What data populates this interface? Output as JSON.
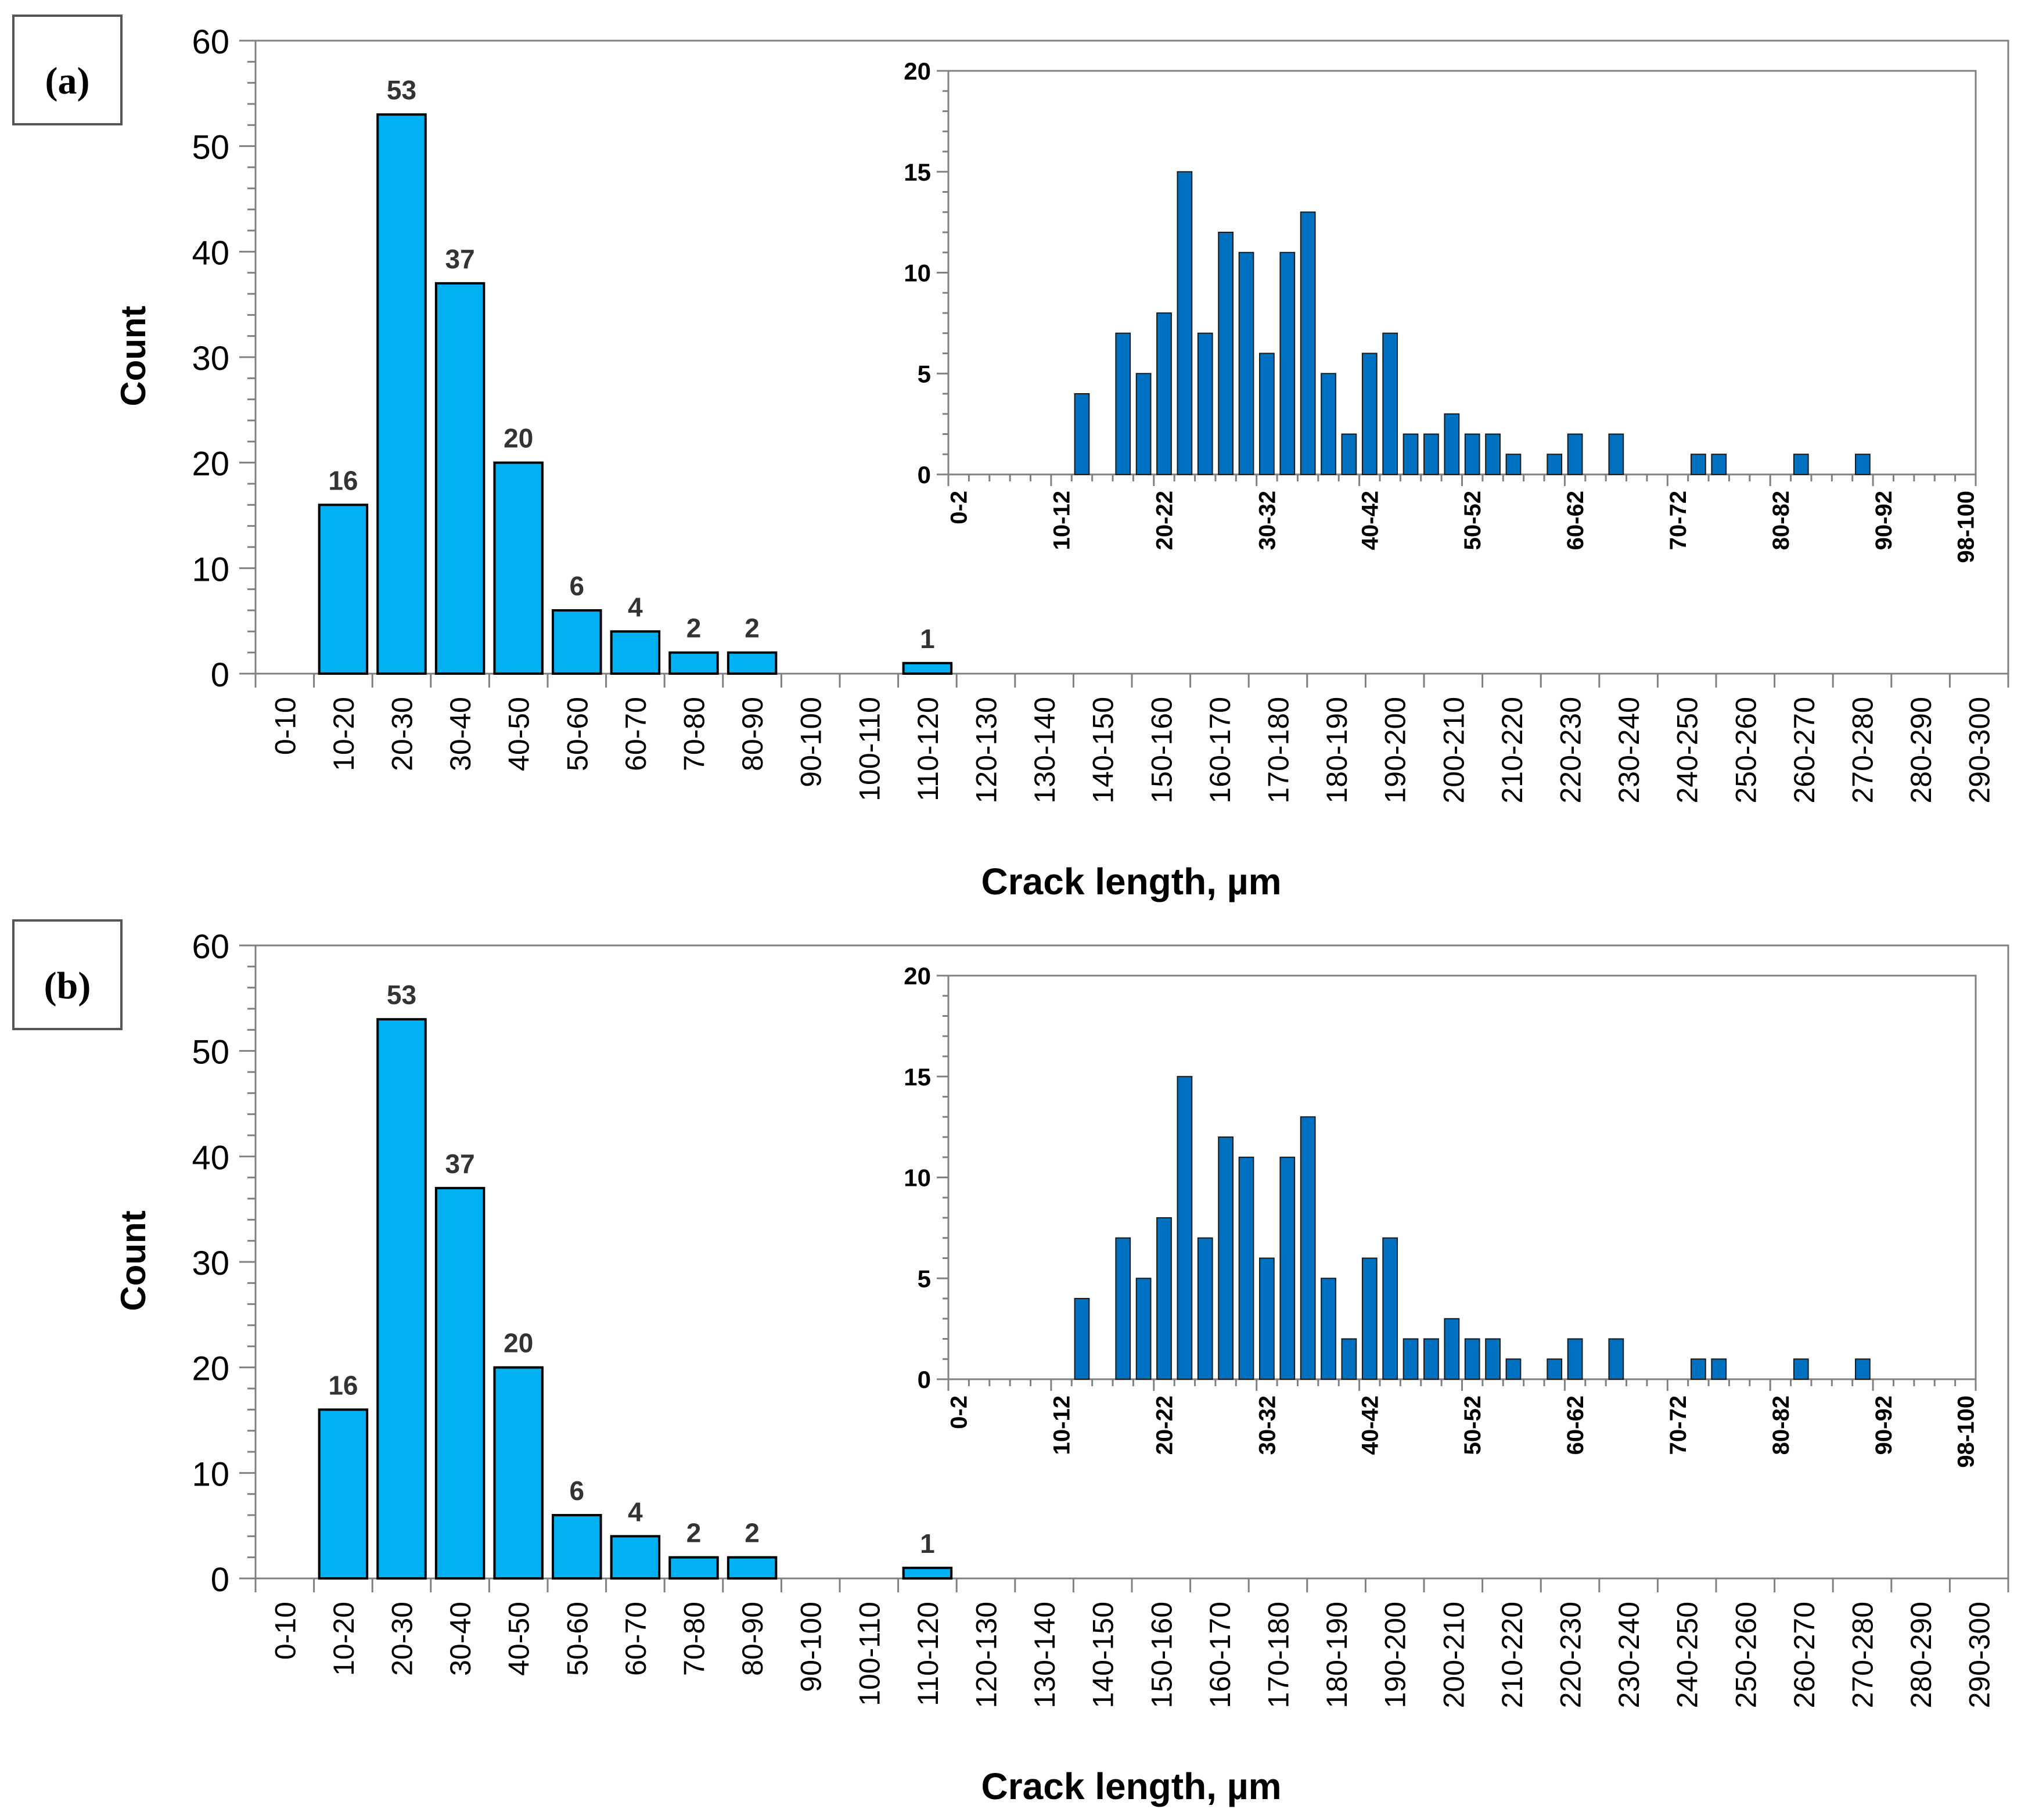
{
  "colors": {
    "main_bar": "#00b0f0",
    "inset_bar": "#0070c0",
    "bar_edge": "#000000",
    "axis": "#808080"
  },
  "chart_data": [
    {
      "panel_label": "(a)",
      "type": "bar",
      "ylabel": "Count",
      "xlabel": "Crack length, µm",
      "ylim": [
        0,
        60
      ],
      "yticks": [
        "0",
        "10",
        "20",
        "30",
        "40",
        "50",
        "60"
      ],
      "categories": [
        "0-10",
        "10-20",
        "20-30",
        "30-40",
        "40-50",
        "50-60",
        "60-70",
        "70-80",
        "80-90",
        "90-100",
        "100-110",
        "110-120",
        "120-130",
        "130-140",
        "140-150",
        "150-160",
        "160-170",
        "170-180",
        "180-190",
        "190-200",
        "200-210",
        "210-220",
        "220-230",
        "230-240",
        "240-250",
        "250-260",
        "260-270",
        "270-280",
        "280-290",
        "290-300"
      ],
      "values": [
        0,
        16,
        53,
        37,
        20,
        6,
        4,
        2,
        2,
        0,
        0,
        1,
        0,
        0,
        0,
        0,
        0,
        0,
        0,
        0,
        0,
        0,
        0,
        0,
        0,
        0,
        0,
        0,
        0,
        0
      ],
      "data_labels": [
        "",
        "16",
        "53",
        "37",
        "20",
        "6",
        "4",
        "2",
        "2",
        "",
        "",
        "1",
        "",
        "",
        "",
        "",
        "",
        "",
        "",
        "",
        "",
        "",
        "",
        "",
        "",
        "",
        "",
        "",
        "",
        ""
      ],
      "inset": {
        "type": "bar",
        "ylim": [
          0,
          20
        ],
        "yticks": [
          "0",
          "5",
          "10",
          "15",
          "20"
        ],
        "tick_labels": [
          "0-2",
          "10-12",
          "20-22",
          "30-32",
          "40-42",
          "50-52",
          "60-62",
          "70-72",
          "80-82",
          "90-92",
          "98-100"
        ],
        "values": [
          0,
          0,
          0,
          0,
          0,
          0,
          4,
          0,
          7,
          5,
          8,
          15,
          7,
          12,
          11,
          6,
          11,
          13,
          5,
          2,
          6,
          7,
          2,
          2,
          3,
          2,
          2,
          1,
          0,
          1,
          2,
          0,
          2,
          0,
          0,
          0,
          1,
          1,
          0,
          0,
          0,
          1,
          0,
          0,
          1,
          0,
          0,
          0,
          0,
          0
        ]
      }
    },
    {
      "panel_label": "(b)",
      "type": "bar",
      "ylabel": "Count",
      "xlabel": "Crack length, µm",
      "ylim": [
        0,
        60
      ],
      "yticks": [
        "0",
        "10",
        "20",
        "30",
        "40",
        "50",
        "60"
      ],
      "categories": [
        "0-10",
        "10-20",
        "20-30",
        "30-40",
        "40-50",
        "50-60",
        "60-70",
        "70-80",
        "80-90",
        "90-100",
        "100-110",
        "110-120",
        "120-130",
        "130-140",
        "140-150",
        "150-160",
        "160-170",
        "170-180",
        "180-190",
        "190-200",
        "200-210",
        "210-220",
        "220-230",
        "230-240",
        "240-250",
        "250-260",
        "260-270",
        "270-280",
        "280-290",
        "290-300"
      ],
      "values": [
        0,
        16,
        53,
        37,
        20,
        6,
        4,
        2,
        2,
        0,
        0,
        1,
        0,
        0,
        0,
        0,
        0,
        0,
        0,
        0,
        0,
        0,
        0,
        0,
        0,
        0,
        0,
        0,
        0,
        0
      ],
      "data_labels": [
        "",
        "16",
        "53",
        "37",
        "20",
        "6",
        "4",
        "2",
        "2",
        "",
        "",
        "1",
        "",
        "",
        "",
        "",
        "",
        "",
        "",
        "",
        "",
        "",
        "",
        "",
        "",
        "",
        "",
        "",
        "",
        ""
      ],
      "inset": {
        "type": "bar",
        "ylim": [
          0,
          20
        ],
        "yticks": [
          "0",
          "5",
          "10",
          "15",
          "20"
        ],
        "tick_labels": [
          "0-2",
          "10-12",
          "20-22",
          "30-32",
          "40-42",
          "50-52",
          "60-62",
          "70-72",
          "80-82",
          "90-92",
          "98-100"
        ],
        "values": [
          0,
          0,
          0,
          0,
          0,
          0,
          4,
          0,
          7,
          5,
          8,
          15,
          7,
          12,
          11,
          6,
          11,
          13,
          5,
          2,
          6,
          7,
          2,
          2,
          3,
          2,
          2,
          1,
          0,
          1,
          2,
          0,
          2,
          0,
          0,
          0,
          1,
          1,
          0,
          0,
          0,
          1,
          0,
          0,
          1,
          0,
          0,
          0,
          0,
          0
        ]
      }
    }
  ]
}
